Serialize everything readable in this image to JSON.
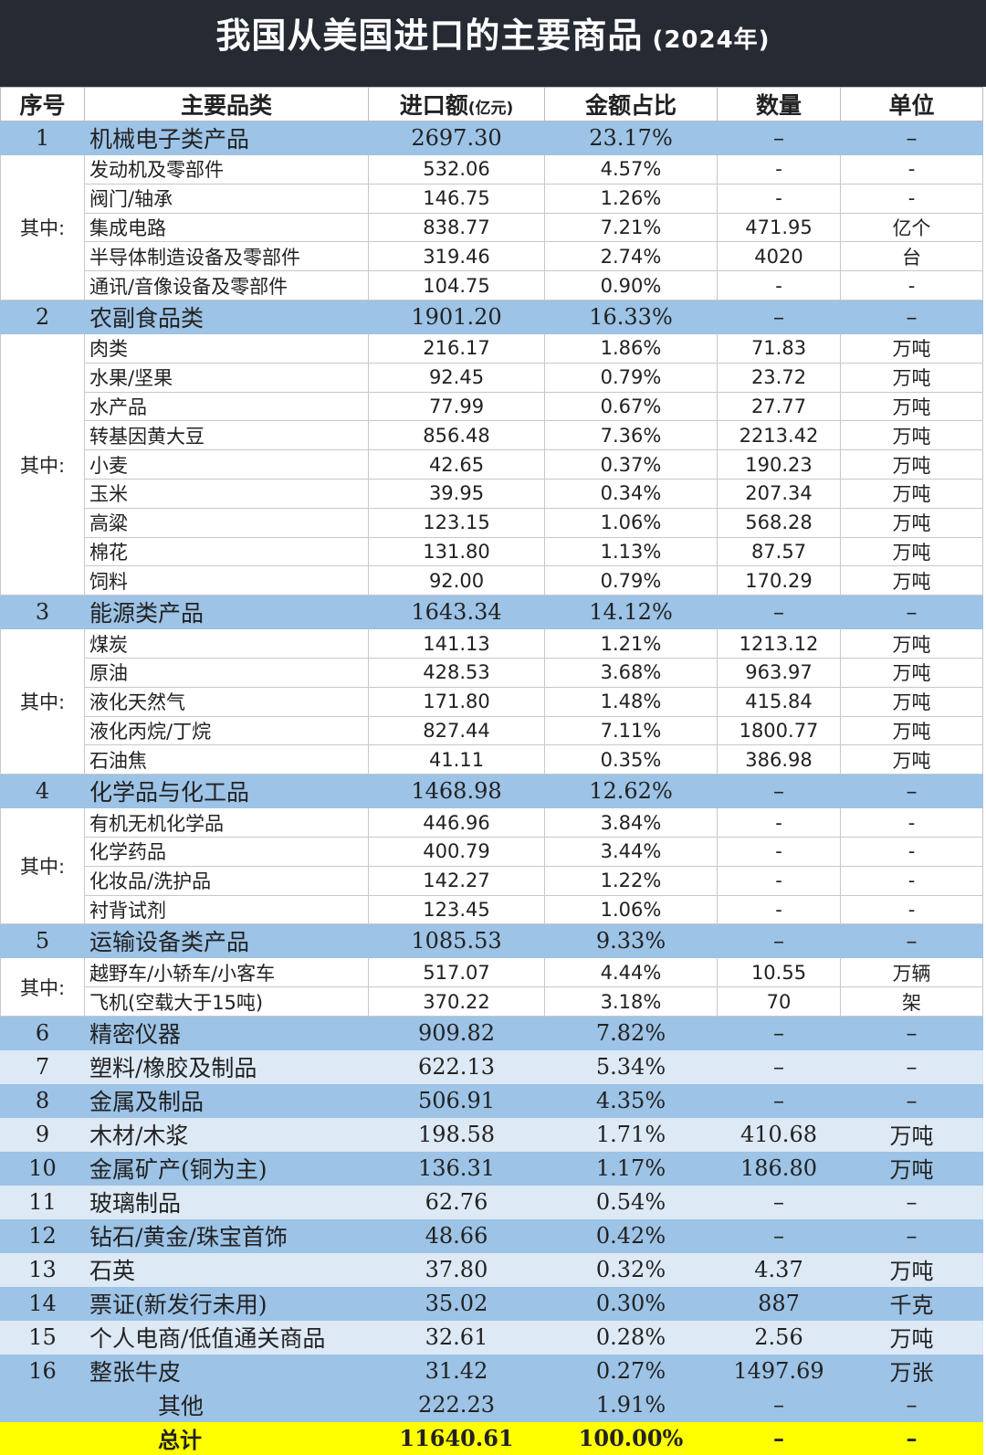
{
  "title": {
    "main": "我国从美国进口的主要商品",
    "year": "(2024年)"
  },
  "headers": {
    "seq": "序号",
    "category": "主要品类",
    "amount": "进口额",
    "amount_unit": "(亿元)",
    "share": "金额占比",
    "quantity": "数量",
    "unit": "单位"
  },
  "group_label": "其中:",
  "groups": [
    {
      "seq": "1",
      "name": "机械电子类产品",
      "amount": "2697.30",
      "share": "23.17%",
      "qty": "–",
      "unit": "–",
      "items": [
        {
          "name": "发动机及零部件",
          "amount": "532.06",
          "share": "4.57%",
          "qty": "-",
          "unit": "-"
        },
        {
          "name": "阀门/轴承",
          "amount": "146.75",
          "share": "1.26%",
          "qty": "-",
          "unit": "-"
        },
        {
          "name": "集成电路",
          "amount": "838.77",
          "share": "7.21%",
          "qty": "471.95",
          "unit": "亿个"
        },
        {
          "name": "半导体制造设备及零部件",
          "amount": "319.46",
          "share": "2.74%",
          "qty": "4020",
          "unit": "台"
        },
        {
          "name": "通讯/音像设备及零部件",
          "amount": "104.75",
          "share": "0.90%",
          "qty": "-",
          "unit": "-"
        }
      ]
    },
    {
      "seq": "2",
      "name": "农副食品类",
      "amount": "1901.20",
      "share": "16.33%",
      "qty": "–",
      "unit": "–",
      "items": [
        {
          "name": "肉类",
          "amount": "216.17",
          "share": "1.86%",
          "qty": "71.83",
          "unit": "万吨"
        },
        {
          "name": "水果/坚果",
          "amount": "92.45",
          "share": "0.79%",
          "qty": "23.72",
          "unit": "万吨"
        },
        {
          "name": "水产品",
          "amount": "77.99",
          "share": "0.67%",
          "qty": "27.77",
          "unit": "万吨"
        },
        {
          "name": "转基因黄大豆",
          "amount": "856.48",
          "share": "7.36%",
          "qty": "2213.42",
          "unit": "万吨"
        },
        {
          "name": "小麦",
          "amount": "42.65",
          "share": "0.37%",
          "qty": "190.23",
          "unit": "万吨"
        },
        {
          "name": "玉米",
          "amount": "39.95",
          "share": "0.34%",
          "qty": "207.34",
          "unit": "万吨"
        },
        {
          "name": "高粱",
          "amount": "123.15",
          "share": "1.06%",
          "qty": "568.28",
          "unit": "万吨"
        },
        {
          "name": "棉花",
          "amount": "131.80",
          "share": "1.13%",
          "qty": "87.57",
          "unit": "万吨"
        },
        {
          "name": "饲料",
          "amount": "92.00",
          "share": "0.79%",
          "qty": "170.29",
          "unit": "万吨"
        }
      ]
    },
    {
      "seq": "3",
      "name": "能源类产品",
      "amount": "1643.34",
      "share": "14.12%",
      "qty": "–",
      "unit": "–",
      "items": [
        {
          "name": "煤炭",
          "amount": "141.13",
          "share": "1.21%",
          "qty": "1213.12",
          "unit": "万吨"
        },
        {
          "name": "原油",
          "amount": "428.53",
          "share": "3.68%",
          "qty": "963.97",
          "unit": "万吨"
        },
        {
          "name": "液化天然气",
          "amount": "171.80",
          "share": "1.48%",
          "qty": "415.84",
          "unit": "万吨"
        },
        {
          "name": "液化丙烷/丁烷",
          "amount": "827.44",
          "share": "7.11%",
          "qty": "1800.77",
          "unit": "万吨"
        },
        {
          "name": "石油焦",
          "amount": "41.11",
          "share": "0.35%",
          "qty": "386.98",
          "unit": "万吨"
        }
      ]
    },
    {
      "seq": "4",
      "name": "化学品与化工品",
      "amount": "1468.98",
      "share": "12.62%",
      "qty": "–",
      "unit": "–",
      "items": [
        {
          "name": "有机无机化学品",
          "amount": "446.96",
          "share": "3.84%",
          "qty": "-",
          "unit": "-"
        },
        {
          "name": "化学药品",
          "amount": "400.79",
          "share": "3.44%",
          "qty": "-",
          "unit": "-"
        },
        {
          "name": "化妆品/洗护品",
          "amount": "142.27",
          "share": "1.22%",
          "qty": "-",
          "unit": "-"
        },
        {
          "name": "衬背试剂",
          "amount": "123.45",
          "share": "1.06%",
          "qty": "-",
          "unit": "-"
        }
      ]
    },
    {
      "seq": "5",
      "name": "运输设备类产品",
      "amount": "1085.53",
      "share": "9.33%",
      "qty": "–",
      "unit": "–",
      "items": [
        {
          "name": "越野车/小轿车/小客车",
          "amount": "517.07",
          "share": "4.44%",
          "qty": "10.55",
          "unit": "万辆"
        },
        {
          "name": "飞机(空载大于15吨)",
          "amount": "370.22",
          "share": "3.18%",
          "qty": "70",
          "unit": "架"
        }
      ]
    }
  ],
  "others": [
    {
      "seq": "6",
      "name": "精密仪器",
      "amount": "909.82",
      "share": "7.82%",
      "qty": "–",
      "unit": "–"
    },
    {
      "seq": "7",
      "name": "塑料/橡胶及制品",
      "amount": "622.13",
      "share": "5.34%",
      "qty": "–",
      "unit": "–"
    },
    {
      "seq": "8",
      "name": "金属及制品",
      "amount": "506.91",
      "share": "4.35%",
      "qty": "–",
      "unit": "–"
    },
    {
      "seq": "9",
      "name": "木材/木浆",
      "amount": "198.58",
      "share": "1.71%",
      "qty": "410.68",
      "unit": "万吨"
    },
    {
      "seq": "10",
      "name": "金属矿产(铜为主)",
      "amount": "136.31",
      "share": "1.17%",
      "qty": "186.80",
      "unit": "万吨"
    },
    {
      "seq": "11",
      "name": "玻璃制品",
      "amount": "62.76",
      "share": "0.54%",
      "qty": "–",
      "unit": "–"
    },
    {
      "seq": "12",
      "name": "钻石/黄金/珠宝首饰",
      "amount": "48.66",
      "share": "0.42%",
      "qty": "–",
      "unit": "–"
    },
    {
      "seq": "13",
      "name": "石英",
      "amount": "37.80",
      "share": "0.32%",
      "qty": "4.37",
      "unit": "万吨"
    },
    {
      "seq": "14",
      "name": "票证(新发行未用)",
      "amount": "35.02",
      "share": "0.30%",
      "qty": "887",
      "unit": "千克"
    },
    {
      "seq": "15",
      "name": "个人电商/低值通关商品",
      "amount": "32.61",
      "share": "0.28%",
      "qty": "2.56",
      "unit": "万吨"
    },
    {
      "seq": "16",
      "name": "整张牛皮",
      "amount": "31.42",
      "share": "0.27%",
      "qty": "1497.69",
      "unit": "万张"
    }
  ],
  "other_row": {
    "name": "其他",
    "amount": "222.23",
    "share": "1.91%",
    "qty": "–",
    "unit": "–"
  },
  "total_row": {
    "name": "总计",
    "amount": "11640.61",
    "share": "100.00%",
    "qty": "–",
    "unit": "–"
  },
  "colors": {
    "title_bg": "#252a33",
    "row_dark": "#9dc3e6",
    "row_light": "#dde9f5",
    "total": "#ffff00"
  }
}
